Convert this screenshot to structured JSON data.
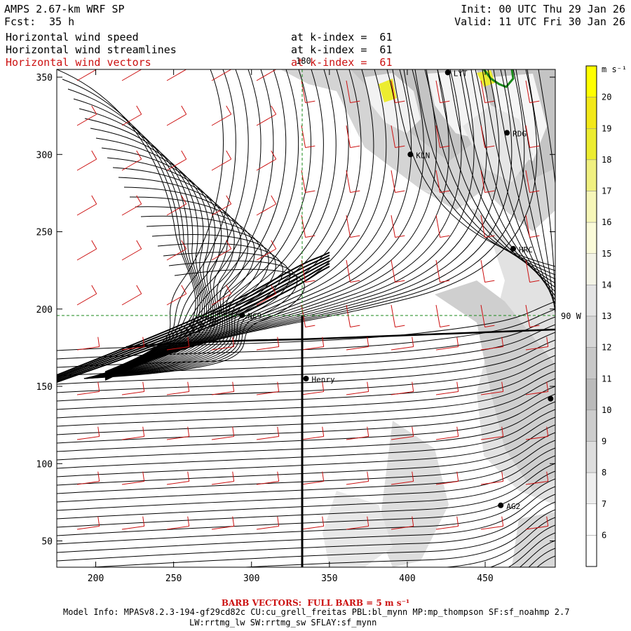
{
  "header": {
    "model_title": "AMPS 2.67-km WRF SP",
    "forecast_label": "Fcst:",
    "forecast_hours": "35 h",
    "init_line": "Init: 00 UTC Thu 29 Jan 26",
    "valid_line": "Valid: 11 UTC Fri 30 Jan 26",
    "fields": [
      {
        "name": "Horizontal wind speed",
        "level": "at k-index =  61",
        "color": "#000000"
      },
      {
        "name": "Horizontal wind streamlines",
        "level": "at k-index =  61",
        "color": "#000000"
      },
      {
        "name": "Horizontal wind vectors",
        "level": "at k-index =  61",
        "color": "#cc1111"
      }
    ]
  },
  "map": {
    "x_ticks": [
      "200",
      "250",
      "300",
      "350",
      "400",
      "450"
    ],
    "x_tick_values": [
      200,
      250,
      300,
      350,
      400,
      450
    ],
    "y_ticks": [
      "50",
      "100",
      "150",
      "200",
      "250",
      "300",
      "350"
    ],
    "y_tick_values": [
      50,
      100,
      150,
      200,
      250,
      300,
      350
    ],
    "x_range": [
      175,
      495
    ],
    "y_range": [
      33,
      355
    ],
    "meridian_label": "180",
    "meridian_x": 333,
    "parallel_label": "90 W",
    "parallel_y": 195,
    "stations": [
      {
        "label": "LYT",
        "x": 426,
        "y": 353
      },
      {
        "label": "RDG",
        "x": 464,
        "y": 314
      },
      {
        "label": "KLN",
        "x": 402,
        "y": 300
      },
      {
        "label": "HRC",
        "x": 468,
        "y": 239
      },
      {
        "label": "NC9",
        "x": 294,
        "y": 196
      },
      {
        "label": "Henry",
        "x": 335,
        "y": 155
      },
      {
        "label": "AG2",
        "x": 460,
        "y": 73
      },
      {
        "label": "",
        "x": 492,
        "y": 142
      }
    ],
    "streamline_color": "#000000",
    "barb_color": "#cc1111",
    "terrain_color": "#c8c8c8",
    "coast_color": "#1a8a1a"
  },
  "colorbar": {
    "unit": "m s⁻¹",
    "labels": [
      "20",
      "19",
      "18",
      "17",
      "16",
      "15",
      "14",
      "13",
      "12",
      "11",
      "10",
      "9",
      "8",
      "7",
      "6"
    ],
    "colors": [
      "#ffff00",
      "#f2e818",
      "#ecec30",
      "#f0f080",
      "#f6f6b8",
      "#fafad8",
      "#f3f3e6",
      "#e4e4e4",
      "#d6d6d6",
      "#c8c8c8",
      "#bababa",
      "#cccccc",
      "#dddddd",
      "#eeeeee",
      "#ffffff",
      "#ffffff"
    ]
  },
  "footer": {
    "barb_title": "BARB VECTORS:  FULL BARB = 5 m s⁻¹",
    "model_info": "Model Info: MPASv8.2.3-194-gf29cd82c CU:cu_grell_freitas PBL:bl_mynn MP:mp_thompson SF:sf_noahmp 2.7",
    "model_info_2": "LW:rrtmg_lw SW:rrtmg_sw SFLAY:sf_mynn"
  }
}
